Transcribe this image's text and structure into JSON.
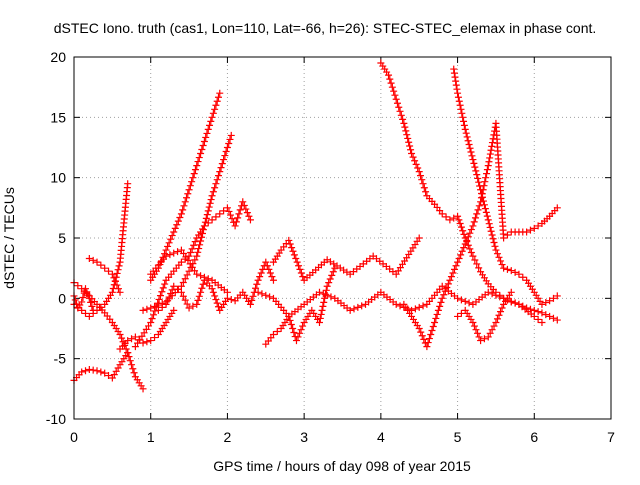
{
  "chart_data": {
    "type": "scatter",
    "title": "dSTEC Iono. truth (cas1, Lon=110, Lat=-66, h=26): STEC-STEC_elemax in phase cont.",
    "xlabel": "GPS time / hours of day 098 of year 2015",
    "ylabel": "dSTEC  / TECUs",
    "xlim": [
      0,
      7
    ],
    "ylim": [
      -10,
      20
    ],
    "xticks": [
      0,
      1,
      2,
      3,
      4,
      5,
      6,
      7
    ],
    "yticks": [
      -10,
      -5,
      0,
      5,
      10,
      15,
      20
    ],
    "grid": true,
    "marker": "+",
    "color": "#ff0000",
    "series": [
      {
        "x": [
          0.0,
          0.1,
          0.2,
          0.3,
          0.4,
          0.5,
          0.6,
          0.7,
          0.8,
          0.9
        ],
        "y": [
          -6.8,
          -6.1,
          -5.9,
          -6.0,
          -6.2,
          -6.6,
          -5.5,
          -4.5,
          -6.5,
          -7.5
        ]
      },
      {
        "x": [
          0.0,
          0.1,
          0.2,
          0.3,
          0.4,
          0.5,
          0.6,
          0.7
        ],
        "y": [
          1.3,
          0.8,
          0.2,
          -0.5,
          -1.2,
          -2.0,
          -3.0,
          -4.5
        ]
      },
      {
        "x": [
          0.0,
          0.1,
          0.2,
          0.3,
          0.4,
          0.5,
          0.6,
          0.7
        ],
        "y": [
          -0.5,
          -1.0,
          -1.5,
          -1.0,
          -0.5,
          0.5,
          3.0,
          9.5
        ]
      },
      {
        "x": [
          0.0,
          0.05,
          0.1,
          0.15,
          0.2,
          0.25
        ],
        "y": [
          0.2,
          -0.8,
          -0.3,
          0.8,
          0.0,
          -1.0
        ]
      },
      {
        "x": [
          0.2,
          0.3,
          0.4,
          0.5,
          0.6
        ],
        "y": [
          3.3,
          3.0,
          2.5,
          2.0,
          0.5
        ]
      },
      {
        "x": [
          0.6,
          0.7,
          0.8,
          0.9,
          1.0,
          1.1,
          1.2,
          1.3
        ],
        "y": [
          -4.2,
          -3.5,
          -3.2,
          -3.7,
          -3.5,
          -3.0,
          -2.0,
          -1.0
        ]
      },
      {
        "x": [
          0.8,
          1.0,
          1.2,
          1.4,
          1.5,
          1.6,
          1.7,
          1.8,
          1.9,
          2.0,
          2.1,
          2.2,
          2.3
        ],
        "y": [
          -4.0,
          -2.0,
          1.5,
          3.0,
          3.5,
          5.0,
          6.0,
          6.5,
          7.0,
          7.5,
          6.0,
          8.0,
          6.5
        ]
      },
      {
        "x": [
          0.9,
          1.0,
          1.2,
          1.4,
          1.6,
          1.7,
          1.8,
          1.9,
          2.0,
          2.05
        ],
        "y": [
          -1.0,
          -0.8,
          -0.3,
          1.0,
          3.5,
          6.0,
          8.5,
          10.5,
          12.5,
          13.5
        ]
      },
      {
        "x": [
          1.0,
          1.1,
          1.2,
          1.3,
          1.4,
          1.5,
          1.6,
          1.7,
          1.8,
          1.9
        ],
        "y": [
          1.5,
          2.5,
          4.0,
          5.5,
          7.0,
          9.0,
          11.0,
          13.0,
          15.0,
          17.0
        ]
      },
      {
        "x": [
          1.0,
          1.2,
          1.4,
          1.6,
          1.8,
          2.0
        ],
        "y": [
          2.0,
          3.5,
          4.0,
          2.0,
          1.5,
          0.5
        ]
      },
      {
        "x": [
          1.1,
          1.2,
          1.3,
          1.4,
          1.5,
          1.6,
          1.7,
          1.8,
          1.9,
          2.0,
          2.1,
          2.2,
          2.3,
          2.4,
          2.5,
          2.6
        ],
        "y": [
          -1.0,
          -0.5,
          1.0,
          0.5,
          -0.8,
          -0.5,
          1.5,
          0.8,
          -1.0,
          0.0,
          -0.2,
          0.5,
          -0.5,
          1.5,
          3.0,
          1.5
        ]
      },
      {
        "x": [
          2.5,
          2.6,
          2.7,
          2.8,
          2.9,
          3.0,
          3.1,
          3.2,
          3.3,
          3.4
        ],
        "y": [
          -3.8,
          -3.0,
          -2.5,
          -1.5,
          -3.5,
          -2.0,
          -1.0,
          -2.0,
          1.0,
          2.5
        ]
      },
      {
        "x": [
          2.4,
          2.6,
          2.8,
          3.0,
          3.2,
          3.4,
          3.6,
          3.8,
          4.0,
          4.2,
          4.4,
          4.6,
          4.8,
          5.0,
          5.2,
          5.4,
          5.6,
          5.8,
          6.0,
          6.1
        ],
        "y": [
          0.5,
          0.0,
          -1.5,
          -0.5,
          0.5,
          0.0,
          -1.0,
          -0.5,
          0.5,
          -0.5,
          -1.0,
          -0.5,
          1.0,
          0.0,
          -0.5,
          0.5,
          0.0,
          -0.5,
          -1.5,
          -2.0
        ]
      },
      {
        "x": [
          2.6,
          2.7,
          2.8,
          3.0,
          3.3,
          3.6,
          3.9,
          4.2,
          4.5
        ],
        "y": [
          3.0,
          4.0,
          4.8,
          1.5,
          3.2,
          2.0,
          3.5,
          2.0,
          5.0
        ]
      },
      {
        "x": [
          4.0,
          4.1,
          4.2,
          4.3,
          4.4,
          4.5,
          4.6,
          4.7,
          4.8,
          4.9,
          5.0,
          5.1,
          5.2,
          5.3,
          5.4,
          5.5,
          5.6,
          5.7,
          5.8,
          5.9,
          6.0,
          6.1,
          6.2,
          6.3
        ],
        "y": [
          19.5,
          18.5,
          16.5,
          14.5,
          12.0,
          10.5,
          8.5,
          7.8,
          7.0,
          6.5,
          6.8,
          5.0,
          3.5,
          2.2,
          1.2,
          0.5,
          0.0,
          -0.3,
          -0.5,
          -0.8,
          -1.0,
          -1.2,
          -1.5,
          -1.8
        ]
      },
      {
        "x": [
          4.95,
          5.0,
          5.1,
          5.2,
          5.3,
          5.4,
          5.5,
          5.6,
          5.7,
          5.8,
          5.9,
          6.0,
          6.1,
          6.2,
          6.3
        ],
        "y": [
          19.0,
          17.0,
          14.0,
          11.5,
          9.0,
          6.5,
          4.0,
          2.5,
          2.3,
          2.0,
          1.5,
          0.5,
          -0.5,
          -0.2,
          0.2
        ]
      },
      {
        "x": [
          4.3,
          4.4,
          4.5,
          4.6,
          4.7,
          4.8,
          4.9,
          5.0,
          5.1,
          5.2,
          5.3,
          5.4,
          5.5,
          5.6,
          5.7,
          5.8,
          5.9,
          6.0,
          6.1,
          6.2,
          6.3
        ],
        "y": [
          -0.5,
          -1.5,
          -2.5,
          -4.0,
          -2.0,
          0.0,
          1.5,
          3.0,
          4.5,
          6.0,
          8.0,
          11.0,
          14.5,
          5.0,
          5.5,
          5.5,
          5.5,
          5.8,
          6.2,
          6.8,
          7.5
        ]
      },
      {
        "x": [
          5.0,
          5.1,
          5.2,
          5.3,
          5.4,
          5.5,
          5.6,
          5.7
        ],
        "y": [
          -1.5,
          -1.0,
          -2.0,
          -3.5,
          -3.2,
          -2.0,
          -0.5,
          0.5
        ]
      }
    ]
  }
}
